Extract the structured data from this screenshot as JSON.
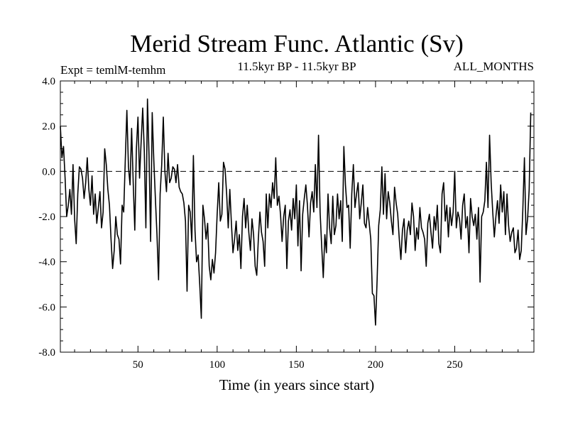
{
  "chart_data": {
    "type": "line",
    "title": "Merid Stream Func. Atlantic (Sv)",
    "experiment_label": "Expt = temlM-temhm",
    "period_label": "11.5kyr BP - 11.5kyr BP",
    "months_label": "ALL_MONTHS",
    "xlabel": "Time (in years since start)",
    "ylabel": "",
    "xlim": [
      1,
      300
    ],
    "ylim": [
      -8,
      4
    ],
    "xticks": [
      50,
      100,
      150,
      200,
      250
    ],
    "xtick_labels": [
      "50",
      "100",
      "150",
      "200",
      "250"
    ],
    "yticks": [
      -8,
      -6,
      -4,
      -2,
      0,
      2,
      4
    ],
    "ytick_labels": [
      "-8.0",
      "-6.0",
      "-4.0",
      "-2.0",
      "0.0",
      "2.0",
      "4.0"
    ],
    "reference_line": 0,
    "series": [
      {
        "name": "Merid Stream Func. Atlantic",
        "x_start": 1,
        "x_step": 1,
        "values": [
          2.0,
          0.6,
          1.1,
          -0.3,
          -2.0,
          -1.5,
          -0.8,
          -1.9,
          0.3,
          -2.1,
          -3.2,
          -1.0,
          0.2,
          0.1,
          -0.3,
          -1.2,
          -0.5,
          0.6,
          -0.8,
          -1.5,
          -0.2,
          -1.9,
          -1.0,
          -2.3,
          -1.6,
          -0.9,
          -2.5,
          -1.8,
          1.0,
          0.3,
          -0.8,
          -1.5,
          -3.0,
          -4.3,
          -3.5,
          -2.0,
          -2.8,
          -3.0,
          -4.1,
          -1.5,
          -1.8,
          0.5,
          2.7,
          0.2,
          -0.6,
          1.9,
          -0.5,
          -2.6,
          1.0,
          2.4,
          -0.3,
          1.3,
          2.8,
          0.9,
          -2.5,
          3.2,
          0.7,
          -3.1,
          2.6,
          0.5,
          -1.2,
          -2.8,
          -4.8,
          -1.0,
          0.3,
          2.4,
          0.0,
          -0.9,
          0.8,
          -0.5,
          -0.3,
          0.2,
          0.1,
          -0.5,
          0.3,
          -0.7,
          -0.9,
          -1.0,
          -1.4,
          -2.2,
          -5.3,
          -1.5,
          -1.8,
          -3.1,
          0.7,
          -2.6,
          -4.0,
          -3.7,
          -5.0,
          -6.5,
          -1.5,
          -2.1,
          -3.0,
          -2.3,
          -4.2,
          -4.8,
          -3.9,
          -4.5,
          -3.6,
          -1.9,
          -0.5,
          -2.2,
          -1.9,
          0.4,
          0.1,
          -1.0,
          -2.5,
          -0.8,
          -2.3,
          -3.6,
          -3.0,
          -2.2,
          -3.5,
          -2.8,
          -4.3,
          -2.0,
          -1.2,
          -2.5,
          -1.5,
          -2.7,
          -3.5,
          -2.1,
          -2.8,
          -4.2,
          -4.6,
          -3.0,
          -1.8,
          -2.7,
          -3.1,
          -4.2,
          -1.0,
          -2.5,
          -1.0,
          -1.6,
          -0.5,
          -1.2,
          0.6,
          -1.5,
          -1.1,
          -1.9,
          -3.1,
          -2.0,
          -1.5,
          -4.3,
          -2.2,
          -1.7,
          -2.6,
          -1.2,
          -2.1,
          -0.6,
          -3.3,
          -1.3,
          -4.4,
          -1.9,
          -1.2,
          -0.6,
          -1.5,
          -2.9,
          -1.4,
          -0.9,
          -1.8,
          0.3,
          -1.6,
          1.6,
          -1.8,
          -3.3,
          -4.7,
          -2.8,
          -3.6,
          -1.0,
          -2.5,
          -3.2,
          -1.1,
          -2.8,
          -2.4,
          -1.0,
          -2.1,
          -1.3,
          -3.1,
          1.1,
          -0.6,
          -1.6,
          -1.5,
          -3.4,
          -1.0,
          0.3,
          -1.6,
          -1.0,
          -0.5,
          -2.1,
          -1.4,
          -0.6,
          -2.3,
          -2.5,
          -1.6,
          -2.3,
          -3.0,
          -5.4,
          -5.5,
          -6.8,
          -4.8,
          -2.4,
          -1.7,
          0.2,
          -1.9,
          -0.1,
          -2.1,
          -0.9,
          -1.4,
          -2.2,
          -2.8,
          -0.7,
          -1.4,
          -1.9,
          -3.0,
          -3.9,
          -2.6,
          -2.1,
          -3.6,
          -2.6,
          -2.2,
          -2.8,
          -1.4,
          -2.0,
          -3.5,
          -2.5,
          -3.0,
          -1.6,
          -2.5,
          -2.7,
          -3.0,
          -4.2,
          -2.3,
          -1.9,
          -2.7,
          -3.4,
          -2.0,
          -2.6,
          -1.5,
          -3.2,
          -3.6,
          -1.0,
          -0.5,
          -2.2,
          -1.5,
          -2.9,
          -1.6,
          -2.4,
          -1.8,
          0.0,
          -2.5,
          -1.8,
          -2.1,
          -3.0,
          -1.5,
          -1.0,
          -2.5,
          -2.0,
          -3.6,
          -1.2,
          -2.0,
          -2.4,
          -1.9,
          -3.0,
          -1.6,
          -4.9,
          -2.0,
          -1.8,
          -1.3,
          0.4,
          -1.6,
          1.6,
          -0.5,
          -1.8,
          -2.9,
          -2.0,
          -1.3,
          -2.3,
          -0.6,
          -1.8,
          -0.9,
          -2.8,
          -1.0,
          -2.4,
          -3.1,
          -2.7,
          -2.5,
          -3.6,
          -3.4,
          -2.6,
          -3.9,
          -3.5,
          -1.7,
          0.6,
          -2.8,
          -2.1,
          -0.8,
          2.6
        ]
      }
    ]
  }
}
